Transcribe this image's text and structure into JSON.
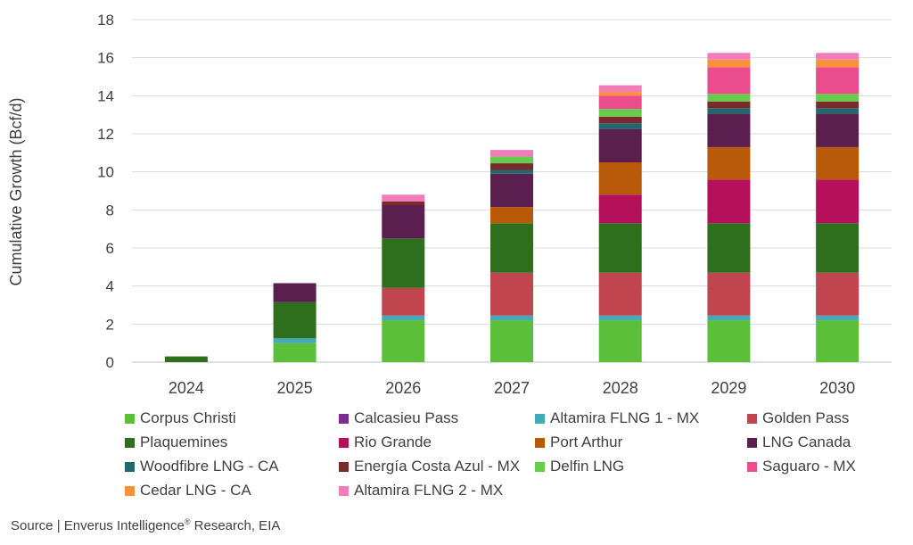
{
  "chart_data": {
    "type": "bar",
    "stacked": true,
    "title": "",
    "xlabel": "",
    "ylabel": "Cumulative Growth (Bcf/d)",
    "ylim": [
      0,
      18
    ],
    "yticks": [
      0,
      2,
      4,
      6,
      8,
      10,
      12,
      14,
      16,
      18
    ],
    "grid": true,
    "legend_position": "bottom",
    "categories": [
      "2024",
      "2025",
      "2026",
      "2027",
      "2028",
      "2029",
      "2030"
    ],
    "series": [
      {
        "name": "Corpus Christi",
        "color": "#5bbf3a",
        "values": [
          0,
          1.0,
          2.2,
          2.2,
          2.2,
          2.2,
          2.2
        ]
      },
      {
        "name": "Calcasieu Pass",
        "color": "#7b2d8e",
        "values": [
          0,
          0,
          0,
          0,
          0,
          0,
          0
        ]
      },
      {
        "name": "Altamira FLNG 1 - MX",
        "color": "#44a9bb",
        "values": [
          0,
          0.25,
          0.25,
          0.25,
          0.25,
          0.25,
          0.25
        ]
      },
      {
        "name": "Golden Pass",
        "color": "#c0454f",
        "values": [
          0,
          0,
          1.45,
          2.25,
          2.25,
          2.25,
          2.25
        ]
      },
      {
        "name": "Plaquemines",
        "color": "#2e6f1e",
        "values": [
          0.3,
          1.9,
          2.6,
          2.6,
          2.6,
          2.6,
          2.6
        ]
      },
      {
        "name": "Rio Grande",
        "color": "#b5105b",
        "values": [
          0,
          0,
          0,
          0,
          1.5,
          2.3,
          2.3
        ]
      },
      {
        "name": "Port Arthur",
        "color": "#b85a09",
        "values": [
          0,
          0,
          0,
          0.85,
          1.7,
          1.7,
          1.7
        ]
      },
      {
        "name": "LNG Canada",
        "color": "#5a1f4e",
        "values": [
          0,
          1.0,
          1.75,
          1.75,
          1.75,
          1.75,
          1.75
        ]
      },
      {
        "name": "Woodfibre LNG - CA",
        "color": "#22666e",
        "values": [
          0,
          0,
          0,
          0.2,
          0.3,
          0.3,
          0.3
        ]
      },
      {
        "name": "Energía Costa Azul - MX",
        "color": "#7a2a2a",
        "values": [
          0,
          0,
          0.2,
          0.35,
          0.35,
          0.35,
          0.35
        ]
      },
      {
        "name": "Delfin LNG",
        "color": "#66cc4d",
        "values": [
          0,
          0,
          0,
          0.35,
          0.4,
          0.4,
          0.4
        ]
      },
      {
        "name": "Saguaro - MX",
        "color": "#ea4c8e",
        "values": [
          0,
          0,
          0,
          0,
          0.7,
          1.4,
          1.4
        ]
      },
      {
        "name": "Cedar LNG - CA",
        "color": "#f7923a",
        "values": [
          0,
          0,
          0,
          0,
          0.2,
          0.4,
          0.4
        ]
      },
      {
        "name": "Altamira FLNG 2 - MX",
        "color": "#f17cb8",
        "values": [
          0,
          0,
          0.35,
          0.35,
          0.35,
          0.35,
          0.35
        ]
      }
    ]
  },
  "source": {
    "prefix": "Source | Enverus Intelligence",
    "mark": "®",
    "suffix": " Research, EIA"
  }
}
